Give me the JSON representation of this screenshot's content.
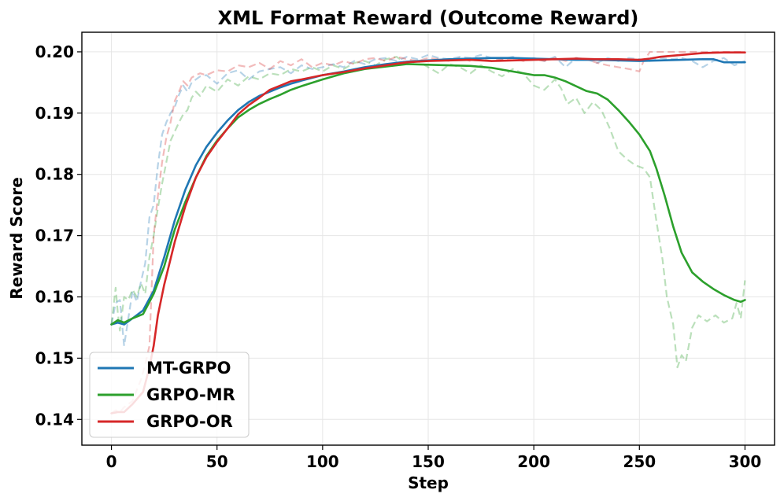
{
  "chart_data": {
    "type": "line",
    "title": "XML Format Reward (Outcome Reward)",
    "xlabel": "Step",
    "ylabel": "Reward Score",
    "xlim": [
      -14,
      314
    ],
    "ylim": [
      0.1358,
      0.2032
    ],
    "xticks": [
      0,
      50,
      100,
      150,
      200,
      250,
      300
    ],
    "yticks": [
      0.14,
      0.15,
      0.16,
      0.17,
      0.18,
      0.19,
      0.2
    ],
    "xtick_labels": [
      "0",
      "50",
      "100",
      "150",
      "200",
      "250",
      "300"
    ],
    "ytick_labels": [
      "0.14",
      "0.15",
      "0.16",
      "0.17",
      "0.18",
      "0.19",
      "0.20"
    ],
    "grid": true,
    "legend_position": "lower-left",
    "series": [
      {
        "name": "MT-GRPO",
        "color": "#1f77b4",
        "raw_x": [
          0,
          2,
          4,
          6,
          8,
          10,
          12,
          14,
          16,
          18,
          20,
          22,
          24,
          26,
          28,
          30,
          32,
          34,
          36,
          38,
          40,
          42,
          45,
          50,
          55,
          60,
          65,
          70,
          75,
          80,
          85,
          90,
          95,
          100,
          105,
          110,
          115,
          120,
          125,
          130,
          135,
          140,
          145,
          150,
          155,
          160,
          165,
          170,
          175,
          180,
          185,
          190,
          195,
          200,
          205,
          210,
          215,
          220,
          225,
          230,
          235,
          240,
          245,
          250,
          255,
          260,
          265,
          270,
          275,
          280,
          285,
          290,
          295,
          300
        ],
        "raw_y": [
          0.1555,
          0.159,
          0.1595,
          0.152,
          0.1565,
          0.161,
          0.1592,
          0.1625,
          0.1655,
          0.173,
          0.175,
          0.1815,
          0.1865,
          0.1885,
          0.19,
          0.191,
          0.193,
          0.1945,
          0.1935,
          0.195,
          0.1955,
          0.196,
          0.1962,
          0.1948,
          0.1965,
          0.197,
          0.1955,
          0.1968,
          0.1972,
          0.1975,
          0.1965,
          0.1978,
          0.1972,
          0.1975,
          0.198,
          0.1975,
          0.1985,
          0.198,
          0.1988,
          0.199,
          0.1985,
          0.1992,
          0.1988,
          0.1995,
          0.199,
          0.1988,
          0.1992,
          0.199,
          0.1995,
          0.199,
          0.1988,
          0.1992,
          0.1988,
          0.199,
          0.1985,
          0.1992,
          0.1975,
          0.199,
          0.1988,
          0.1982,
          0.199,
          0.1985,
          0.199,
          0.1988,
          0.1985,
          0.199,
          0.1988,
          0.199,
          0.1985,
          0.1975,
          0.1985,
          0.199,
          0.1978,
          0.1985
        ],
        "smooth_x": [
          0,
          3,
          6,
          10,
          15,
          20,
          25,
          30,
          35,
          40,
          45,
          50,
          55,
          60,
          65,
          70,
          75,
          80,
          85,
          90,
          100,
          110,
          120,
          130,
          140,
          150,
          160,
          170,
          180,
          190,
          200,
          210,
          220,
          230,
          240,
          250,
          260,
          270,
          280,
          285,
          290,
          300
        ],
        "smooth_y": [
          0.1555,
          0.1558,
          0.1555,
          0.1565,
          0.1578,
          0.161,
          0.1665,
          0.1725,
          0.1775,
          0.1815,
          0.1845,
          0.1868,
          0.1888,
          0.1905,
          0.1918,
          0.1928,
          0.1935,
          0.1942,
          0.1948,
          0.1953,
          0.1962,
          0.1968,
          0.1975,
          0.198,
          0.1984,
          0.1986,
          0.1988,
          0.1989,
          0.199,
          0.199,
          0.1989,
          0.1988,
          0.1987,
          0.1987,
          0.1986,
          0.1985,
          0.1986,
          0.1987,
          0.1988,
          0.1988,
          0.1983,
          0.1983
        ]
      },
      {
        "name": "GRPO-MR",
        "color": "#2ca02c",
        "raw_x": [
          0,
          2,
          3,
          4,
          6,
          8,
          10,
          12,
          14,
          16,
          18,
          20,
          22,
          24,
          26,
          28,
          30,
          32,
          34,
          36,
          38,
          40,
          42,
          45,
          50,
          55,
          60,
          65,
          70,
          75,
          80,
          85,
          90,
          95,
          100,
          105,
          110,
          115,
          120,
          125,
          130,
          135,
          140,
          145,
          150,
          155,
          160,
          165,
          170,
          175,
          180,
          185,
          190,
          195,
          200,
          205,
          210,
          213,
          216,
          220,
          224,
          228,
          232,
          236,
          240,
          244,
          248,
          252,
          255,
          258,
          261,
          263,
          266,
          268,
          270,
          272,
          275,
          278,
          282,
          286,
          290,
          294,
          296,
          298,
          300
        ],
        "raw_y": [
          0.1555,
          0.1615,
          0.1575,
          0.1545,
          0.16,
          0.1595,
          0.1612,
          0.16,
          0.1622,
          0.1605,
          0.1665,
          0.17,
          0.1745,
          0.1785,
          0.182,
          0.1855,
          0.187,
          0.1885,
          0.1898,
          0.1905,
          0.1925,
          0.1935,
          0.1928,
          0.1945,
          0.1935,
          0.1955,
          0.1945,
          0.196,
          0.1955,
          0.1965,
          0.1962,
          0.1972,
          0.1968,
          0.1975,
          0.1968,
          0.1978,
          0.1972,
          0.1982,
          0.1985,
          0.1978,
          0.1988,
          0.1992,
          0.198,
          0.1985,
          0.1975,
          0.1965,
          0.198,
          0.1975,
          0.1965,
          0.1978,
          0.1968,
          0.196,
          0.1972,
          0.1965,
          0.1945,
          0.1938,
          0.1955,
          0.194,
          0.1915,
          0.1925,
          0.19,
          0.1918,
          0.1905,
          0.1875,
          0.1838,
          0.1825,
          0.1815,
          0.181,
          0.1795,
          0.1725,
          0.166,
          0.16,
          0.1555,
          0.1485,
          0.1505,
          0.1495,
          0.155,
          0.157,
          0.156,
          0.157,
          0.1558,
          0.1565,
          0.159,
          0.1565,
          0.1627
        ],
        "smooth_x": [
          0,
          3,
          6,
          10,
          15,
          20,
          25,
          30,
          35,
          40,
          45,
          50,
          55,
          60,
          65,
          70,
          75,
          80,
          85,
          90,
          100,
          110,
          120,
          130,
          140,
          150,
          160,
          170,
          180,
          190,
          195,
          200,
          205,
          210,
          215,
          220,
          225,
          230,
          235,
          240,
          245,
          250,
          255,
          258,
          262,
          266,
          270,
          275,
          280,
          285,
          290,
          295,
          298,
          300
        ],
        "smooth_y": [
          0.1555,
          0.1562,
          0.1558,
          0.1565,
          0.1572,
          0.1605,
          0.165,
          0.171,
          0.1755,
          0.1795,
          0.183,
          0.1855,
          0.1875,
          0.1893,
          0.1905,
          0.1915,
          0.1923,
          0.193,
          0.1938,
          0.1944,
          0.1955,
          0.1965,
          0.1972,
          0.1976,
          0.198,
          0.1979,
          0.1978,
          0.1977,
          0.1974,
          0.1968,
          0.1965,
          0.1962,
          0.1962,
          0.1958,
          0.1952,
          0.1944,
          0.1936,
          0.1932,
          0.1922,
          0.1905,
          0.1886,
          0.1865,
          0.1838,
          0.181,
          0.1765,
          0.1715,
          0.1672,
          0.164,
          0.1625,
          0.1613,
          0.1603,
          0.1595,
          0.1592,
          0.1595
        ]
      },
      {
        "name": "GRPO-OR",
        "color": "#d62728",
        "raw_x": [
          0,
          2,
          4,
          6,
          8,
          10,
          12,
          14,
          16,
          18,
          20,
          22,
          24,
          26,
          28,
          30,
          32,
          34,
          36,
          38,
          40,
          42,
          45,
          50,
          55,
          60,
          65,
          70,
          75,
          80,
          85,
          90,
          95,
          100,
          105,
          110,
          115,
          120,
          125,
          130,
          135,
          140,
          145,
          150,
          155,
          160,
          165,
          170,
          175,
          180,
          185,
          190,
          195,
          200,
          205,
          210,
          215,
          220,
          225,
          230,
          235,
          240,
          245,
          250,
          252,
          255,
          260,
          265,
          270,
          280,
          290,
          300
        ],
        "raw_y": [
          0.141,
          0.1415,
          0.1412,
          0.142,
          0.1425,
          0.143,
          0.1448,
          0.1465,
          0.149,
          0.152,
          0.17,
          0.1765,
          0.182,
          0.186,
          0.1885,
          0.192,
          0.1935,
          0.1952,
          0.1945,
          0.1958,
          0.1962,
          0.1965,
          0.1962,
          0.197,
          0.1968,
          0.1978,
          0.1975,
          0.1982,
          0.1972,
          0.1985,
          0.1978,
          0.1988,
          0.1975,
          0.1982,
          0.1978,
          0.1985,
          0.198,
          0.1988,
          0.199,
          0.1985,
          0.1992,
          0.1988,
          0.1985,
          0.199,
          0.1988,
          0.1985,
          0.199,
          0.1985,
          0.1988,
          0.1985,
          0.1988,
          0.199,
          0.1985,
          0.1988,
          0.1985,
          0.199,
          0.1985,
          0.199,
          0.1988,
          0.1982,
          0.1978,
          0.1975,
          0.1972,
          0.1968,
          0.1985,
          0.2,
          0.2,
          0.2,
          0.2,
          0.2,
          0.2,
          0.2
        ],
        "smooth_x": [
          0,
          3,
          6,
          10,
          15,
          18,
          20,
          22,
          25,
          30,
          35,
          40,
          45,
          50,
          55,
          60,
          65,
          70,
          75,
          80,
          85,
          90,
          100,
          110,
          120,
          130,
          140,
          150,
          160,
          170,
          180,
          190,
          200,
          210,
          220,
          230,
          240,
          250,
          255,
          260,
          270,
          280,
          290,
          300
        ],
        "smooth_y": [
          0.141,
          0.1412,
          0.1412,
          0.1425,
          0.1445,
          0.1485,
          0.152,
          0.157,
          0.162,
          0.169,
          0.1748,
          0.1795,
          0.1828,
          0.1853,
          0.1875,
          0.1898,
          0.1913,
          0.1925,
          0.1938,
          0.1945,
          0.1952,
          0.1955,
          0.1962,
          0.1967,
          0.1973,
          0.1978,
          0.1983,
          0.1985,
          0.1986,
          0.1987,
          0.1985,
          0.1986,
          0.1987,
          0.1988,
          0.1989,
          0.1988,
          0.1988,
          0.1987,
          0.1989,
          0.1992,
          0.1995,
          0.1998,
          0.1999,
          0.1999
        ]
      }
    ]
  }
}
